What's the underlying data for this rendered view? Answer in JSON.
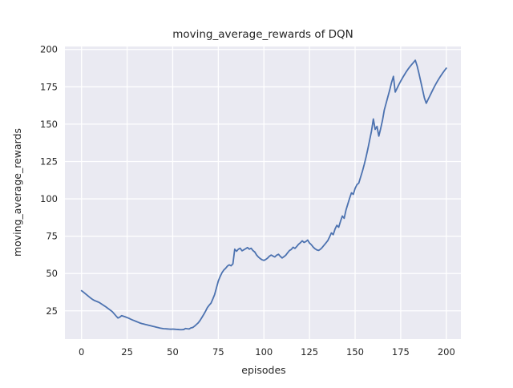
{
  "chart_data": {
    "type": "line",
    "title": "moving_average_rewards of DQN",
    "xlabel": "episodes",
    "ylabel": "moving_average_rewards",
    "x_ticks": [
      0,
      25,
      50,
      75,
      100,
      125,
      150,
      175,
      200
    ],
    "y_ticks": [
      25,
      50,
      75,
      100,
      125,
      150,
      175,
      200
    ],
    "xlim": [
      -9.1,
      208.0
    ],
    "ylim": [
      6.1,
      202.0
    ],
    "grid": true,
    "legend": "none",
    "style": {
      "line_color": "#4c72b0",
      "plot_bg": "#eaeaf2",
      "grid_color": "#ffffff",
      "text_color": "#262626",
      "figure_bg": "#ffffff"
    },
    "series": [
      {
        "name": "DQN",
        "x_start": 0,
        "x_step": 1,
        "values": [
          38.5,
          37.6,
          36.6,
          35.6,
          34.6,
          33.6,
          32.7,
          32.0,
          31.5,
          31.0,
          30.4,
          29.6,
          28.8,
          28.0,
          27.1,
          26.2,
          25.3,
          24.3,
          22.9,
          21.5,
          20.2,
          20.8,
          21.8,
          21.4,
          21.0,
          20.5,
          20.0,
          19.4,
          18.9,
          18.4,
          17.9,
          17.4,
          16.9,
          16.5,
          16.2,
          15.9,
          15.6,
          15.3,
          15.0,
          14.7,
          14.4,
          14.1,
          13.8,
          13.5,
          13.3,
          13.1,
          13.0,
          12.9,
          12.8,
          12.7,
          12.8,
          12.7,
          12.6,
          12.5,
          12.4,
          12.4,
          12.5,
          13.2,
          13.0,
          12.9,
          13.6,
          13.9,
          14.8,
          15.9,
          17.0,
          18.6,
          20.6,
          22.6,
          24.8,
          27.2,
          28.8,
          30.2,
          33.0,
          36.0,
          40.5,
          45.0,
          48.0,
          50.5,
          52.3,
          53.5,
          55.0,
          55.8,
          55.2,
          56.5,
          66.3,
          64.9,
          66.3,
          66.9,
          65.2,
          65.9,
          66.6,
          67.4,
          66.3,
          66.9,
          65.4,
          64.4,
          62.4,
          61.0,
          60.0,
          59.2,
          58.8,
          59.4,
          60.3,
          61.6,
          62.4,
          61.7,
          61.1,
          62.3,
          62.9,
          61.5,
          60.4,
          61.3,
          62.3,
          63.9,
          65.4,
          66.1,
          67.6,
          66.8,
          68.1,
          69.6,
          70.6,
          71.9,
          70.8,
          71.4,
          72.4,
          70.4,
          69.3,
          67.7,
          66.6,
          65.8,
          65.5,
          66.3,
          67.5,
          69.0,
          70.5,
          72.0,
          74.5,
          77.2,
          76.0,
          79.8,
          82.3,
          81.0,
          85.0,
          88.5,
          87.0,
          92.5,
          96.5,
          100.5,
          104.0,
          103.0,
          107.0,
          109.5,
          110.5,
          114.5,
          118.5,
          123.0,
          128.0,
          133.5,
          139.5,
          145.5,
          153.5,
          146.5,
          148.5,
          142.0,
          147.0,
          152.5,
          159.5,
          164.0,
          168.5,
          173.0,
          178.0,
          182.0,
          171.5,
          174.0,
          176.5,
          178.8,
          181.0,
          183.0,
          185.0,
          186.8,
          188.4,
          189.9,
          191.3,
          192.8,
          189.0,
          184.0,
          178.5,
          173.0,
          167.5,
          164.0,
          166.5,
          169.0,
          171.5,
          174.0,
          176.3,
          178.5,
          180.5,
          182.4,
          184.2,
          185.9,
          187.5
        ]
      }
    ]
  }
}
